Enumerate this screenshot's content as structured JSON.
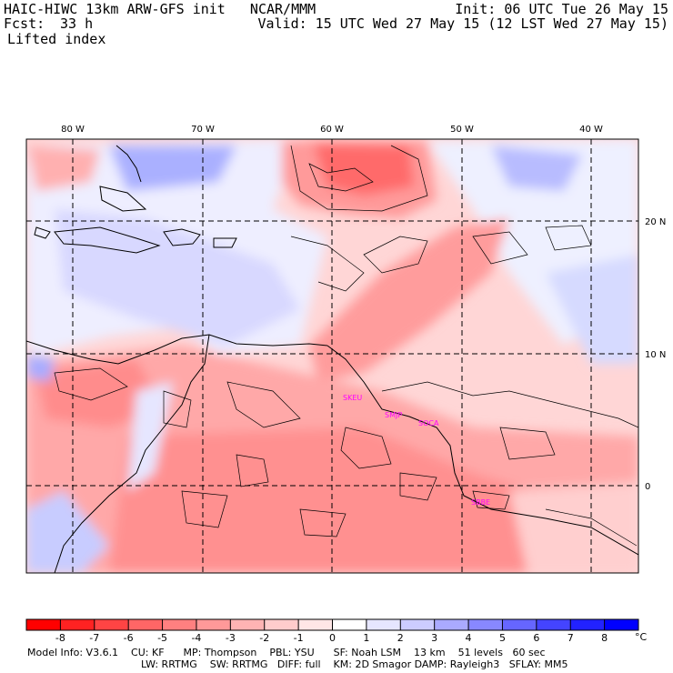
{
  "header": {
    "model_line": "HAIC-HIWC 13km ARW-GFS init   NCAR/MMM",
    "fcst_label": "Fcst:",
    "fcst_value": "33 h",
    "field": "Lifted index",
    "init": "Init: 06 UTC Tue 26 May 15",
    "valid": "Valid: 15 UTC Wed 27 May 15 (12 LST Wed 27 May 15)"
  },
  "map": {
    "lon_labels": [
      "80 W",
      "70 W",
      "60 W",
      "50 W",
      "40 W"
    ],
    "lat_labels": [
      "20 N",
      "10 N",
      "0"
    ],
    "stations": [
      "SKEU",
      "SMJP",
      "SOCA",
      "SBBE"
    ]
  },
  "colorbar": {
    "unit": "°C",
    "tick_labels": [
      "-8",
      "-7",
      "-6",
      "-5",
      "-4",
      "-3",
      "-2",
      "-1",
      "0",
      "1",
      "2",
      "3",
      "4",
      "5",
      "6",
      "7",
      "8"
    ],
    "colors": [
      "#ff0000",
      "#ff2222",
      "#ff4444",
      "#ff6666",
      "#ff8080",
      "#ff9999",
      "#ffb3b3",
      "#ffcccc",
      "#ffe6e6",
      "#ffffff",
      "#e6e6ff",
      "#ccccff",
      "#aaaaff",
      "#8888ff",
      "#6666ff",
      "#4444ff",
      "#2222ff",
      "#0000ff"
    ]
  },
  "footer": {
    "line1": "Model Info: V3.6.1    CU: KF      MP: Thompson    PBL: YSU      SF: Noah LSM    13 km    51 levels   60 sec",
    "line2": "LW: RRTMG    SW: RRTMG   DIFF: full    KM: 2D Smagor DAMP: Rayleigh3   SFLAY: MM5"
  }
}
